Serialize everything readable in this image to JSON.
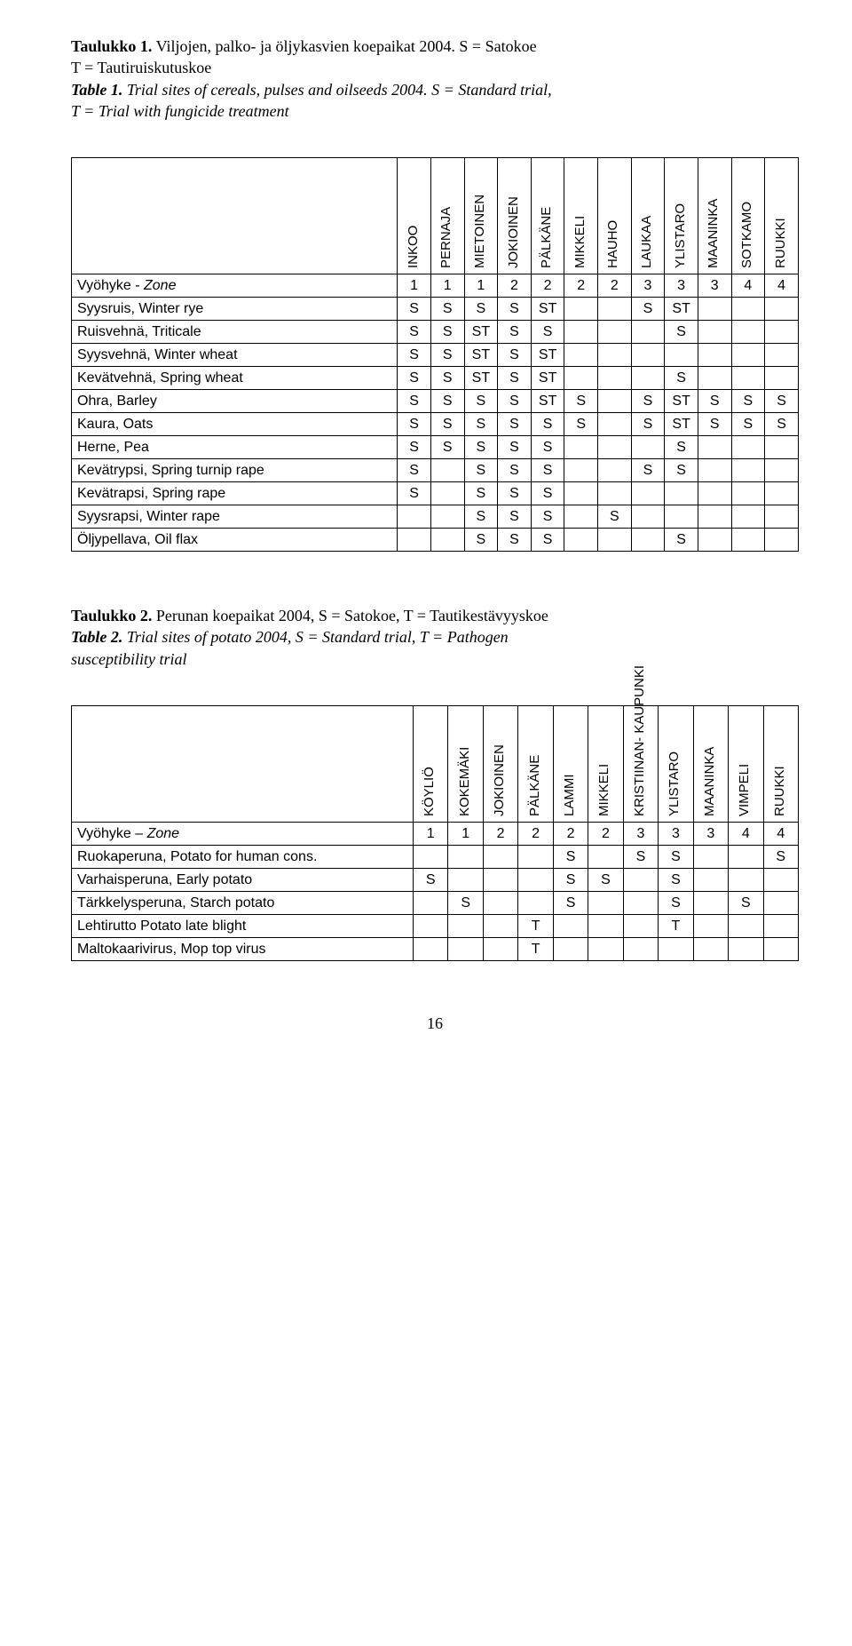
{
  "caption1": {
    "title": "Taulukko 1.",
    "text1": " Viljojen, palko- ja öljykasvien koepaikat 2004. S = Satokoe",
    "text2": "T = Tautiruiskutuskoe",
    "title_en": "Table 1.",
    "text3": " Trial sites of cereals, pulses and oilseeds 2004.",
    "text4": " S = Standard trial,",
    "text5": "T = Trial with fungicide treatment"
  },
  "table1": {
    "columns": [
      "INKOO",
      "PERNAJA",
      "MIETOINEN",
      "JOKIOINEN",
      "PÄLKÄNE",
      "MIKKELI",
      "HAUHO",
      "LAUKAA",
      "YLISTARO",
      "MAANINKA",
      "SOTKAMO",
      "RUUKKI"
    ],
    "rows": [
      {
        "label": "Vyöhyke - Zone",
        "italic": true,
        "cells": [
          "1",
          "1",
          "1",
          "2",
          "2",
          "2",
          "2",
          "3",
          "3",
          "3",
          "4",
          "4"
        ]
      },
      {
        "label": "Syysruis, Winter rye",
        "cells": [
          "S",
          "S",
          "S",
          "S",
          "ST",
          "",
          "",
          "S",
          "ST",
          "",
          "",
          ""
        ]
      },
      {
        "label": "Ruisvehnä, Triticale",
        "cells": [
          "S",
          "S",
          "ST",
          "S",
          "S",
          "",
          "",
          "",
          "S",
          "",
          "",
          ""
        ]
      },
      {
        "label": "Syysvehnä, Winter wheat",
        "cells": [
          "S",
          "S",
          "ST",
          "S",
          "ST",
          "",
          "",
          "",
          "",
          "",
          "",
          ""
        ]
      },
      {
        "label": "Kevätvehnä, Spring wheat",
        "cells": [
          "S",
          "S",
          "ST",
          "S",
          "ST",
          "",
          "",
          "",
          "S",
          "",
          "",
          ""
        ]
      },
      {
        "label": "Ohra, Barley",
        "cells": [
          "S",
          "S",
          "S",
          "S",
          "ST",
          "S",
          "",
          "S",
          "ST",
          "S",
          "S",
          "S"
        ]
      },
      {
        "label": "Kaura, Oats",
        "cells": [
          "S",
          "S",
          "S",
          "S",
          "S",
          "S",
          "",
          "S",
          "ST",
          "S",
          "S",
          "S"
        ]
      },
      {
        "label": "Herne, Pea",
        "cells": [
          "S",
          "S",
          "S",
          "S",
          "S",
          "",
          "",
          "",
          "S",
          "",
          "",
          ""
        ]
      },
      {
        "label": "Kevätrypsi, Spring turnip rape",
        "cells": [
          "S",
          "",
          "S",
          "S",
          "S",
          "",
          "",
          "S",
          "S",
          "",
          "",
          ""
        ]
      },
      {
        "label": "Kevätrapsi, Spring rape",
        "cells": [
          "S",
          "",
          "S",
          "S",
          "S",
          "",
          "",
          "",
          "",
          "",
          "",
          ""
        ]
      },
      {
        "label": "Syysrapsi, Winter rape",
        "cells": [
          "",
          "",
          "S",
          "S",
          "S",
          "",
          "S",
          "",
          "",
          "",
          "",
          ""
        ]
      },
      {
        "label": "Öljypellava,  Oil flax",
        "cells": [
          "",
          "",
          "S",
          "S",
          "S",
          "",
          "",
          "",
          "S",
          "",
          "",
          ""
        ]
      }
    ]
  },
  "caption2": {
    "title": "Taulukko 2.",
    "text1": " Perunan koepaikat 2004, S = Satokoe, T = Tautikestävyyskoe",
    "title_en": "Table 2.",
    "text2": " Trial sites of potato 2004, S = Standard trial, T = Pathogen",
    "text3": " susceptibility trial"
  },
  "table2": {
    "columns": [
      "KÖYLIÖ",
      "KOKEMÄKI",
      "JOKIOINEN",
      "PÄLKÄNE",
      "LAMMI",
      "MIKKELI",
      "KRISTIINAN-\nKAUPUNKI",
      "YLISTARO",
      "MAANINKA",
      "VIMPELI",
      "RUUKKI"
    ],
    "rows": [
      {
        "label": "Vyöhyke – Zone",
        "italic": true,
        "cells": [
          "1",
          "1",
          "2",
          "2",
          "2",
          "2",
          "3",
          "3",
          "3",
          "4",
          "4"
        ]
      },
      {
        "label": "Ruokaperuna, Potato for human cons.",
        "cells": [
          "",
          "",
          "",
          "",
          "S",
          "",
          "S",
          "S",
          "",
          "",
          "S"
        ]
      },
      {
        "label": "Varhaisperuna, Early potato",
        "cells": [
          "S",
          "",
          "",
          "",
          "S",
          "S",
          "",
          "S",
          "",
          "",
          ""
        ]
      },
      {
        "label": "Tärkkelysperuna, Starch potato",
        "cells": [
          "",
          "S",
          "",
          "",
          "S",
          "",
          "",
          "S",
          "",
          "S",
          ""
        ]
      },
      {
        "label": "Lehtirutto Potato late blight",
        "cells": [
          "",
          "",
          "",
          "T",
          "",
          "",
          "",
          "T",
          "",
          "",
          ""
        ]
      },
      {
        "label": "Maltokaarivirus, Mop top virus",
        "cells": [
          "",
          "",
          "",
          "T",
          "",
          "",
          "",
          "",
          "",
          "",
          ""
        ]
      }
    ]
  },
  "pagenum": "16"
}
